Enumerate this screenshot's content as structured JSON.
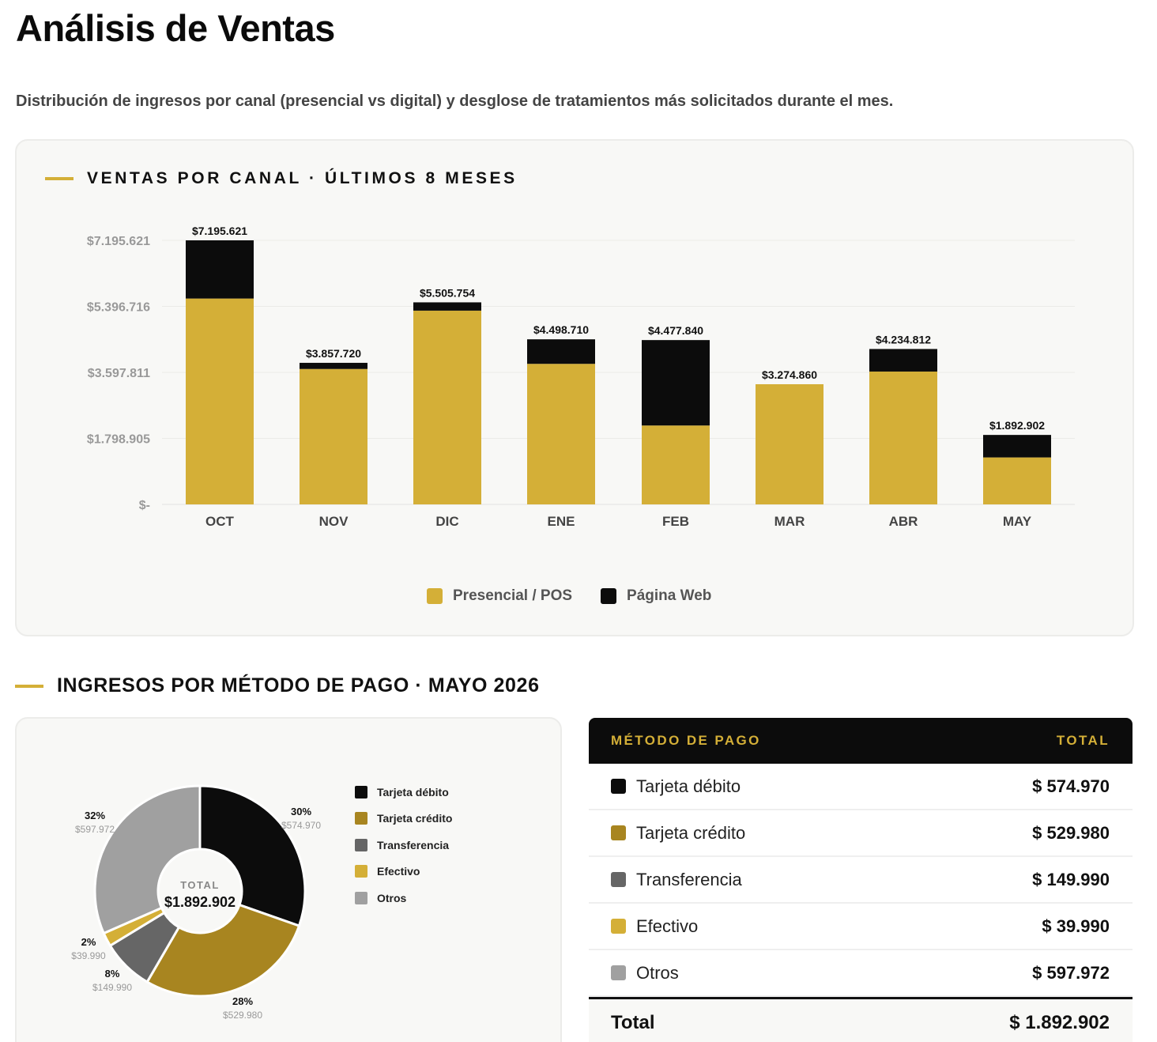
{
  "page": {
    "title": "Análisis de Ventas",
    "subtitle": "Distribución de ingresos por canal (presencial vs digital) y desglose de tratamientos más solicitados durante el mes."
  },
  "channel_section": {
    "heading": "VENTAS POR CANAL · ÚLTIMOS 8 MESES"
  },
  "payment_section": {
    "heading": "INGRESOS POR MÉTODO DE PAGO · MAYO 2026"
  },
  "colors": {
    "accent": "#d4af37",
    "presencial": "#d4af37",
    "web": "#0c0c0c",
    "debito": "#0c0c0c",
    "credito": "#a88520",
    "transferencia": "#666666",
    "efectivo": "#d4af37",
    "otros": "#a0a0a0"
  },
  "chart_data": [
    {
      "type": "bar",
      "stacked": true,
      "categories": [
        "OCT",
        "NOV",
        "DIC",
        "ENE",
        "FEB",
        "MAR",
        "ABR",
        "MAY"
      ],
      "series": [
        {
          "name": "Presencial / POS",
          "values": [
            5610000,
            3690000,
            5280000,
            3830000,
            2150000,
            3274860,
            3620000,
            1280000
          ]
        },
        {
          "name": "Página Web",
          "values": [
            1585621,
            167720,
            225754,
            668710,
            2327840,
            0,
            614812,
            612902
          ]
        }
      ],
      "totals": [
        "$7.195.621",
        "$3.857.720",
        "$5.505.754",
        "$4.498.710",
        "$4.477.840",
        "$3.274.860",
        "$4.234.812",
        "$1.892.902"
      ],
      "total_values": [
        7195621,
        3857720,
        5505754,
        4498710,
        4477840,
        3274860,
        4234812,
        1892902
      ],
      "yticks": [
        0,
        1798905,
        3597811,
        5396716,
        7195621
      ],
      "ytick_labels": [
        "$-",
        "$1.798.905",
        "$3.597.811",
        "$5.396.716",
        "$7.195.621"
      ],
      "ylim": [
        0,
        7195621
      ],
      "grid": true,
      "legend": "bottom-center"
    },
    {
      "type": "pie",
      "donut": true,
      "center_label": "TOTAL",
      "center_value": "$1.892.902",
      "slices": [
        {
          "name": "Tarjeta débito",
          "value": 574970,
          "pct": "30%",
          "amount": "$574.970",
          "color": "#0c0c0c"
        },
        {
          "name": "Tarjeta crédito",
          "value": 529980,
          "pct": "28%",
          "amount": "$529.980",
          "color": "#a88520"
        },
        {
          "name": "Transferencia",
          "value": 149990,
          "pct": "8%",
          "amount": "$149.990",
          "color": "#666666"
        },
        {
          "name": "Efectivo",
          "value": 39990,
          "pct": "2%",
          "amount": "$39.990",
          "color": "#d4af37"
        },
        {
          "name": "Otros",
          "value": 597972,
          "pct": "32%",
          "amount": "$597.972",
          "color": "#a0a0a0"
        }
      ],
      "legend": "right"
    }
  ],
  "payment_table": {
    "header_method": "MÉTODO DE PAGO",
    "header_total": "TOTAL",
    "rows": [
      {
        "name": "Tarjeta débito",
        "value": "$ 574.970",
        "color": "#0c0c0c"
      },
      {
        "name": "Tarjeta crédito",
        "value": "$ 529.980",
        "color": "#a88520"
      },
      {
        "name": "Transferencia",
        "value": "$ 149.990",
        "color": "#666666"
      },
      {
        "name": "Efectivo",
        "value": "$ 39.990",
        "color": "#d4af37"
      },
      {
        "name": "Otros",
        "value": "$ 597.972",
        "color": "#a0a0a0"
      }
    ],
    "total_label": "Total",
    "total_value": "$ 1.892.902"
  }
}
